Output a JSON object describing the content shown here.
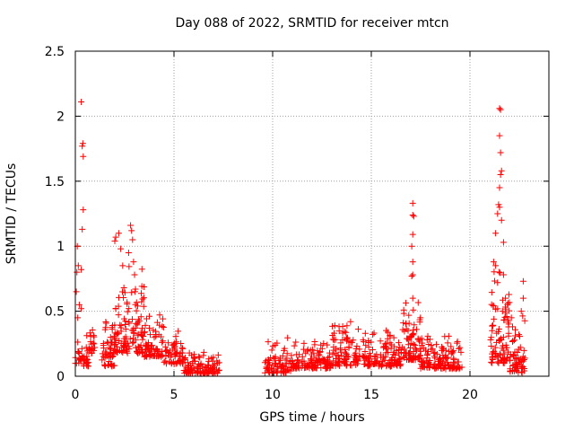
{
  "chart_data": {
    "type": "scatter",
    "title": "Day 088 of 2022, SRMTID for receiver mtcn",
    "xlabel": "GPS time / hours",
    "ylabel": "SRMTID / TECUs",
    "xlim": [
      0,
      24
    ],
    "ylim": [
      0,
      2.5
    ],
    "xticks": [
      "0",
      "5",
      "10",
      "15",
      "20"
    ],
    "xtick_values": [
      0,
      5,
      10,
      15,
      20
    ],
    "yticks": [
      "0",
      "0.5",
      "1",
      "1.5",
      "2",
      "2.5"
    ],
    "ytick_values": [
      0,
      0.5,
      1,
      1.5,
      2,
      2.5
    ],
    "grid": true,
    "marker": "+",
    "color": "#ff0000",
    "outliers": [
      {
        "x": 0.05,
        "y": 0.65
      },
      {
        "x": 0.08,
        "y": 0.8
      },
      {
        "x": 0.1,
        "y": 1.0
      },
      {
        "x": 0.12,
        "y": 0.45
      },
      {
        "x": 0.15,
        "y": 0.85
      },
      {
        "x": 0.2,
        "y": 0.55
      },
      {
        "x": 0.3,
        "y": 2.11
      },
      {
        "x": 0.35,
        "y": 1.77
      },
      {
        "x": 0.38,
        "y": 1.79
      },
      {
        "x": 0.4,
        "y": 1.69
      },
      {
        "x": 0.4,
        "y": 1.28
      },
      {
        "x": 0.35,
        "y": 1.13
      },
      {
        "x": 0.3,
        "y": 0.82
      },
      {
        "x": 0.3,
        "y": 0.52
      },
      {
        "x": 2.0,
        "y": 1.04
      },
      {
        "x": 2.05,
        "y": 1.07
      },
      {
        "x": 2.2,
        "y": 1.1
      },
      {
        "x": 2.3,
        "y": 0.98
      },
      {
        "x": 2.4,
        "y": 0.85
      },
      {
        "x": 2.8,
        "y": 1.16
      },
      {
        "x": 2.85,
        "y": 1.12
      },
      {
        "x": 2.9,
        "y": 1.05
      },
      {
        "x": 2.7,
        "y": 0.95
      },
      {
        "x": 2.95,
        "y": 0.88
      },
      {
        "x": 3.0,
        "y": 0.78
      },
      {
        "x": 17.1,
        "y": 1.33
      },
      {
        "x": 17.1,
        "y": 1.24
      },
      {
        "x": 17.15,
        "y": 1.23
      },
      {
        "x": 17.1,
        "y": 1.09
      },
      {
        "x": 17.05,
        "y": 1.0
      },
      {
        "x": 17.1,
        "y": 0.88
      },
      {
        "x": 17.1,
        "y": 0.78
      },
      {
        "x": 17.05,
        "y": 0.77
      },
      {
        "x": 17.1,
        "y": 0.6
      },
      {
        "x": 21.5,
        "y": 2.06
      },
      {
        "x": 21.55,
        "y": 2.05
      },
      {
        "x": 21.5,
        "y": 1.85
      },
      {
        "x": 21.55,
        "y": 1.72
      },
      {
        "x": 21.6,
        "y": 1.58
      },
      {
        "x": 21.55,
        "y": 1.55
      },
      {
        "x": 21.5,
        "y": 1.45
      },
      {
        "x": 21.45,
        "y": 1.32
      },
      {
        "x": 21.5,
        "y": 1.3
      },
      {
        "x": 21.4,
        "y": 1.25
      },
      {
        "x": 21.6,
        "y": 1.2
      },
      {
        "x": 21.3,
        "y": 1.1
      },
      {
        "x": 21.7,
        "y": 1.03
      },
      {
        "x": 21.2,
        "y": 0.88
      },
      {
        "x": 21.3,
        "y": 0.85
      },
      {
        "x": 21.7,
        "y": 0.78
      },
      {
        "x": 21.4,
        "y": 0.72
      },
      {
        "x": 21.8,
        "y": 0.6
      },
      {
        "x": 21.9,
        "y": 0.55
      },
      {
        "x": 22.1,
        "y": 0.45
      },
      {
        "x": 22.7,
        "y": 0.73
      },
      {
        "x": 22.7,
        "y": 0.6
      },
      {
        "x": 22.6,
        "y": 0.5
      }
    ],
    "segments": [
      {
        "x_start": 0.0,
        "x_end": 0.7,
        "base": 0.15,
        "spread": 0.15,
        "count": 40
      },
      {
        "x_start": 0.7,
        "x_end": 1.05,
        "base": 0.25,
        "spread": 0.15,
        "count": 18
      },
      {
        "x_start": 1.35,
        "x_end": 2.0,
        "base": 0.2,
        "spread": 0.25,
        "count": 55
      },
      {
        "x_start": 2.0,
        "x_end": 3.5,
        "base": 0.35,
        "spread": 0.35,
        "count": 120
      },
      {
        "x_start": 3.5,
        "x_end": 4.5,
        "base": 0.25,
        "spread": 0.2,
        "count": 70
      },
      {
        "x_start": 4.5,
        "x_end": 5.5,
        "base": 0.17,
        "spread": 0.15,
        "count": 60
      },
      {
        "x_start": 5.5,
        "x_end": 7.3,
        "base": 0.07,
        "spread": 0.1,
        "count": 110
      },
      {
        "x_start": 9.6,
        "x_end": 11.0,
        "base": 0.1,
        "spread": 0.15,
        "count": 80
      },
      {
        "x_start": 11.0,
        "x_end": 13.0,
        "base": 0.12,
        "spread": 0.12,
        "count": 120
      },
      {
        "x_start": 13.0,
        "x_end": 14.0,
        "base": 0.18,
        "spread": 0.2,
        "count": 70
      },
      {
        "x_start": 14.0,
        "x_end": 16.5,
        "base": 0.15,
        "spread": 0.15,
        "count": 150
      },
      {
        "x_start": 16.5,
        "x_end": 17.5,
        "base": 0.25,
        "spread": 0.25,
        "count": 80
      },
      {
        "x_start": 17.5,
        "x_end": 19.6,
        "base": 0.13,
        "spread": 0.15,
        "count": 130
      },
      {
        "x_start": 21.0,
        "x_end": 22.0,
        "base": 0.3,
        "spread": 0.4,
        "count": 90
      },
      {
        "x_start": 22.0,
        "x_end": 22.8,
        "base": 0.15,
        "spread": 0.25,
        "count": 60
      }
    ]
  }
}
